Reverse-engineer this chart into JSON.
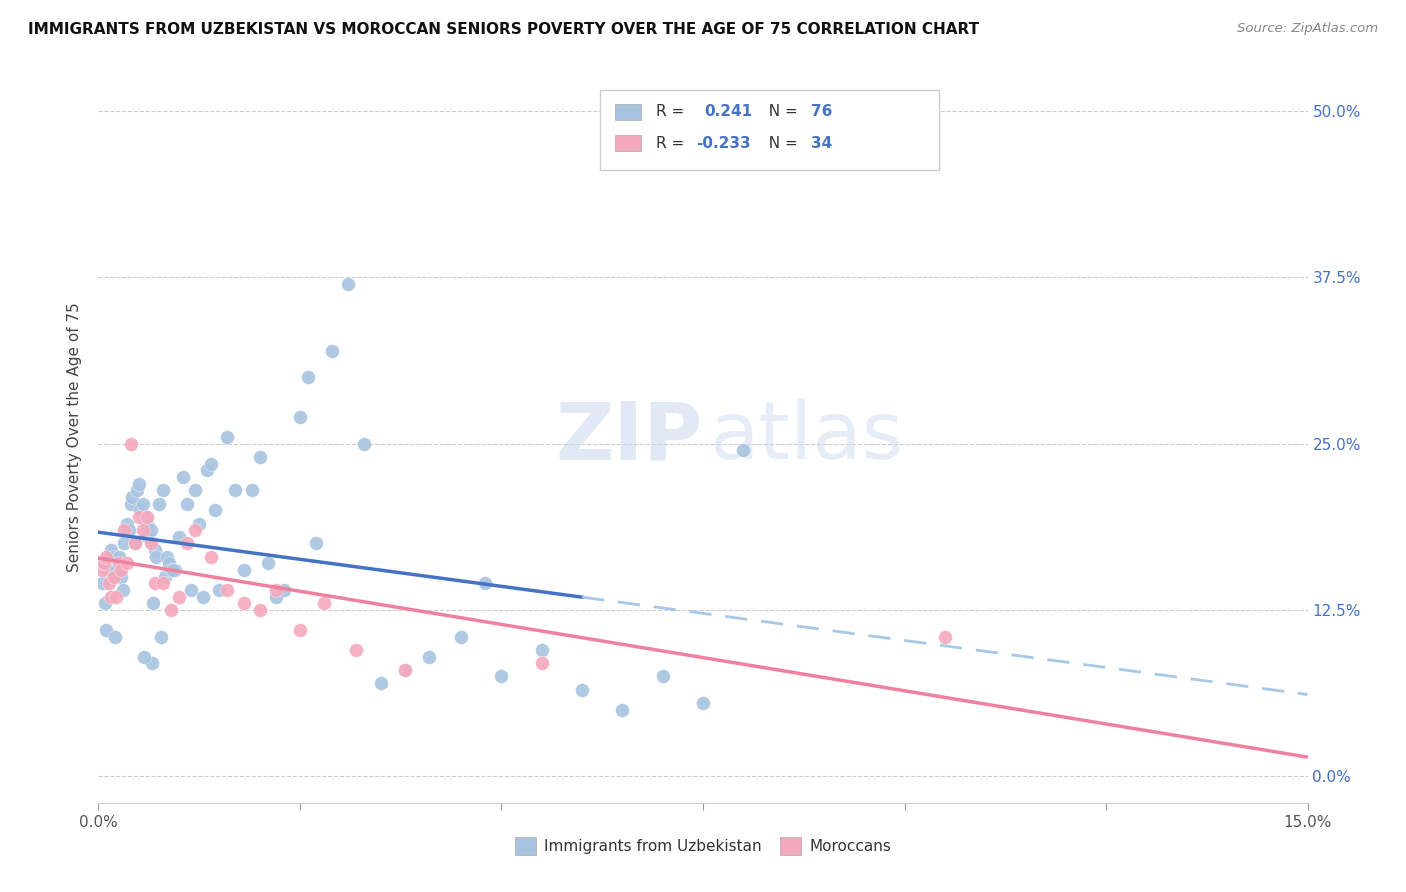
{
  "title": "IMMIGRANTS FROM UZBEKISTAN VS MOROCCAN SENIORS POVERTY OVER THE AGE OF 75 CORRELATION CHART",
  "source": "Source: ZipAtlas.com",
  "ylabel": "Seniors Poverty Over the Age of 75",
  "ytick_labels": [
    "0.0%",
    "12.5%",
    "25.0%",
    "37.5%",
    "50.0%"
  ],
  "ytick_values": [
    0.0,
    12.5,
    25.0,
    37.5,
    50.0
  ],
  "xlim": [
    0.0,
    15.0
  ],
  "ylim": [
    -2.0,
    53.0
  ],
  "color_uzbekistan": "#a8c4e0",
  "color_moroccan": "#f4a8bc",
  "color_line_uzbekistan": "#4472c4",
  "color_line_moroccan": "#f080a0",
  "color_line_uzbekistan_dash": "#a8c8e8",
  "watermark_zip": "ZIP",
  "watermark_atlas": "atlas",
  "uzbekistan_x": [
    0.05,
    0.08,
    0.1,
    0.12,
    0.15,
    0.18,
    0.2,
    0.22,
    0.25,
    0.28,
    0.3,
    0.32,
    0.35,
    0.38,
    0.4,
    0.42,
    0.45,
    0.48,
    0.5,
    0.52,
    0.55,
    0.58,
    0.6,
    0.62,
    0.65,
    0.68,
    0.7,
    0.72,
    0.75,
    0.78,
    0.8,
    0.82,
    0.85,
    0.88,
    0.9,
    0.95,
    1.0,
    1.05,
    1.1,
    1.15,
    1.2,
    1.25,
    1.3,
    1.35,
    1.4,
    1.5,
    1.6,
    1.7,
    1.8,
    1.9,
    2.0,
    2.1,
    2.2,
    2.3,
    2.5,
    2.7,
    2.9,
    3.1,
    3.3,
    3.5,
    3.8,
    4.1,
    4.5,
    5.0,
    5.5,
    6.0,
    6.5,
    7.0,
    7.5,
    8.0,
    2.6,
    1.45,
    0.92,
    0.67,
    0.57,
    4.8
  ],
  "uzbekistan_y": [
    14.5,
    13.0,
    11.0,
    15.5,
    17.0,
    16.5,
    10.5,
    15.0,
    16.5,
    15.0,
    14.0,
    17.5,
    19.0,
    18.5,
    20.5,
    21.0,
    17.5,
    21.5,
    22.0,
    20.0,
    20.5,
    19.5,
    19.0,
    18.0,
    18.5,
    13.0,
    17.0,
    16.5,
    20.5,
    10.5,
    21.5,
    15.0,
    16.5,
    16.0,
    15.5,
    15.5,
    18.0,
    22.5,
    20.5,
    14.0,
    21.5,
    19.0,
    13.5,
    23.0,
    23.5,
    14.0,
    25.5,
    21.5,
    15.5,
    21.5,
    24.0,
    16.0,
    13.5,
    14.0,
    27.0,
    17.5,
    32.0,
    37.0,
    25.0,
    7.0,
    8.0,
    9.0,
    10.5,
    7.5,
    9.5,
    6.5,
    5.0,
    7.5,
    5.5,
    24.5,
    30.0,
    20.0,
    15.5,
    8.5,
    9.0,
    14.5
  ],
  "moroccan_x": [
    0.04,
    0.07,
    0.1,
    0.13,
    0.16,
    0.19,
    0.22,
    0.25,
    0.28,
    0.32,
    0.36,
    0.4,
    0.45,
    0.5,
    0.55,
    0.6,
    0.65,
    0.7,
    0.8,
    0.9,
    1.0,
    1.1,
    1.2,
    1.4,
    1.6,
    1.8,
    2.0,
    2.2,
    2.5,
    2.8,
    3.2,
    3.8,
    5.5,
    10.5
  ],
  "moroccan_y": [
    15.5,
    16.0,
    16.5,
    14.5,
    13.5,
    15.0,
    13.5,
    16.0,
    15.5,
    18.5,
    16.0,
    25.0,
    17.5,
    19.5,
    18.5,
    19.5,
    17.5,
    14.5,
    14.5,
    12.5,
    13.5,
    17.5,
    18.5,
    16.5,
    14.0,
    13.0,
    12.5,
    14.0,
    11.0,
    13.0,
    9.5,
    8.0,
    8.5,
    10.5
  ],
  "x_tick_positions": [
    0,
    2.5,
    5.0,
    7.5,
    10.0,
    12.5,
    15.0
  ],
  "legend_line1_r": "0.241",
  "legend_line1_n": "76",
  "legend_line2_r": "-0.233",
  "legend_line2_n": "34"
}
